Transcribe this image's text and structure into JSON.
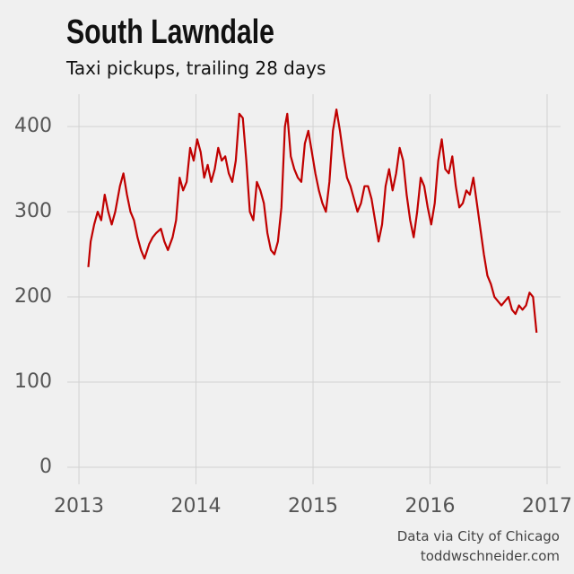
{
  "chart_data": {
    "type": "line",
    "title": "South Lawndale",
    "subtitle": "Taxi pickups, trailing 28 days",
    "source": "Data via City of Chicago",
    "credit": "toddwschneider.com",
    "x": [
      2013.08,
      2013.1,
      2013.13,
      2013.16,
      2013.19,
      2013.22,
      2013.25,
      2013.28,
      2013.31,
      2013.35,
      2013.38,
      2013.41,
      2013.44,
      2013.47,
      2013.5,
      2013.53,
      2013.56,
      2013.6,
      2013.63,
      2013.66,
      2013.7,
      2013.73,
      2013.76,
      2013.8,
      2013.83,
      2013.86,
      2013.89,
      2013.92,
      2013.95,
      2013.98,
      2014.01,
      2014.04,
      2014.07,
      2014.1,
      2014.13,
      2014.16,
      2014.19,
      2014.22,
      2014.25,
      2014.28,
      2014.31,
      2014.34,
      2014.37,
      2014.4,
      2014.43,
      2014.46,
      2014.49,
      2014.52,
      2014.55,
      2014.58,
      2014.61,
      2014.64,
      2014.67,
      2014.7,
      2014.73,
      2014.76,
      2014.78,
      2014.81,
      2014.84,
      2014.87,
      2014.9,
      2014.93,
      2014.96,
      2014.99,
      2015.02,
      2015.05,
      2015.08,
      2015.11,
      2015.14,
      2015.17,
      2015.2,
      2015.23,
      2015.26,
      2015.29,
      2015.32,
      2015.35,
      2015.38,
      2015.41,
      2015.44,
      2015.47,
      2015.5,
      2015.53,
      2015.56,
      2015.59,
      2015.62,
      2015.65,
      2015.68,
      2015.71,
      2015.74,
      2015.77,
      2015.8,
      2015.83,
      2015.86,
      2015.89,
      2015.92,
      2015.95,
      2015.98,
      2016.01,
      2016.04,
      2016.07,
      2016.1,
      2016.13,
      2016.16,
      2016.19,
      2016.22,
      2016.25,
      2016.28,
      2016.31,
      2016.34,
      2016.37,
      2016.4,
      2016.43,
      2016.46,
      2016.49,
      2016.52,
      2016.55,
      2016.58,
      2016.61,
      2016.64,
      2016.67,
      2016.7,
      2016.73,
      2016.76,
      2016.79,
      2016.82,
      2016.85,
      2016.88,
      2016.91
    ],
    "series": [
      {
        "name": "South Lawndale",
        "color": "#c00000",
        "values": [
          235,
          265,
          285,
          300,
          290,
          320,
          300,
          285,
          300,
          330,
          345,
          320,
          300,
          290,
          270,
          255,
          245,
          262,
          270,
          275,
          280,
          265,
          255,
          270,
          290,
          340,
          325,
          335,
          375,
          360,
          385,
          370,
          340,
          355,
          335,
          350,
          375,
          360,
          365,
          345,
          335,
          360,
          415,
          410,
          360,
          300,
          290,
          335,
          325,
          310,
          275,
          255,
          250,
          265,
          305,
          400,
          415,
          365,
          350,
          340,
          335,
          380,
          395,
          370,
          345,
          325,
          310,
          300,
          335,
          395,
          420,
          395,
          365,
          340,
          330,
          315,
          300,
          310,
          330,
          330,
          315,
          290,
          265,
          285,
          330,
          350,
          325,
          345,
          375,
          360,
          320,
          290,
          270,
          300,
          340,
          330,
          305,
          285,
          310,
          360,
          385,
          350,
          345,
          365,
          330,
          305,
          310,
          325,
          320,
          340,
          310,
          280,
          250,
          225,
          215,
          200,
          195,
          190,
          195,
          200,
          185,
          180,
          190,
          185,
          190,
          205,
          200,
          158
        ]
      }
    ],
    "xlim": [
      2012.9,
      2017.115
    ],
    "xticks": [
      2013,
      2014,
      2015,
      2016,
      2017
    ],
    "ylim": [
      -20,
      438
    ],
    "yticks": [
      0,
      100,
      200,
      300,
      400
    ],
    "grid": true
  }
}
